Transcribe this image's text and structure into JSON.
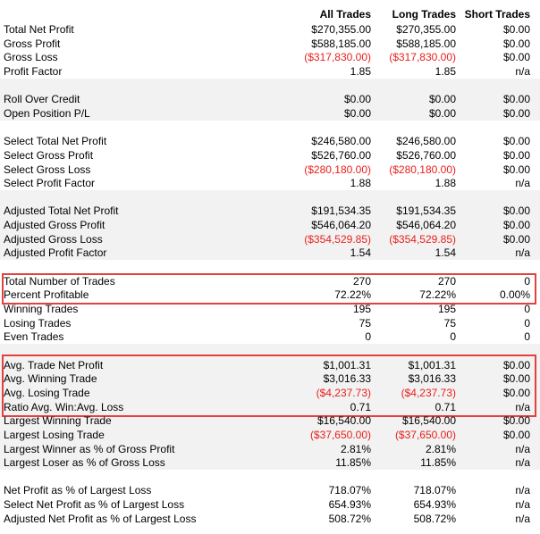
{
  "header": {
    "columns": [
      "All Trades",
      "Long Trades",
      "Short Trades"
    ]
  },
  "sections": [
    {
      "rows": [
        {
          "label": "Total Net Profit",
          "values": [
            "$270,355.00",
            "$270,355.00",
            "$0.00"
          ]
        },
        {
          "label": "Gross Profit",
          "values": [
            "$588,185.00",
            "$588,185.00",
            "$0.00"
          ]
        },
        {
          "label": "Gross Loss",
          "values": [
            "($317,830.00)",
            "($317,830.00)",
            "$0.00"
          ]
        },
        {
          "label": "Profit Factor",
          "values": [
            "1.85",
            "1.85",
            "n/a"
          ]
        }
      ]
    },
    {
      "rows": [
        {
          "label": "Roll Over Credit",
          "values": [
            "$0.00",
            "$0.00",
            "$0.00"
          ]
        },
        {
          "label": "Open Position P/L",
          "values": [
            "$0.00",
            "$0.00",
            "$0.00"
          ]
        }
      ]
    },
    {
      "rows": [
        {
          "label": "Select Total Net Profit",
          "values": [
            "$246,580.00",
            "$246,580.00",
            "$0.00"
          ]
        },
        {
          "label": "Select Gross Profit",
          "values": [
            "$526,760.00",
            "$526,760.00",
            "$0.00"
          ]
        },
        {
          "label": "Select Gross Loss",
          "values": [
            "($280,180.00)",
            "($280,180.00)",
            "$0.00"
          ]
        },
        {
          "label": "Select Profit Factor",
          "values": [
            "1.88",
            "1.88",
            "n/a"
          ]
        }
      ]
    },
    {
      "rows": [
        {
          "label": "Adjusted Total Net Profit",
          "values": [
            "$191,534.35",
            "$191,534.35",
            "$0.00"
          ]
        },
        {
          "label": "Adjusted Gross Profit",
          "values": [
            "$546,064.20",
            "$546,064.20",
            "$0.00"
          ]
        },
        {
          "label": "Adjusted Gross Loss",
          "values": [
            "($354,529.85)",
            "($354,529.85)",
            "$0.00"
          ]
        },
        {
          "label": "Adjusted Profit Factor",
          "values": [
            "1.54",
            "1.54",
            "n/a"
          ]
        }
      ]
    },
    {
      "rows": [
        {
          "label": "Total Number of Trades",
          "values": [
            "270",
            "270",
            "0"
          ]
        },
        {
          "label": "Percent Profitable",
          "values": [
            "72.22%",
            "72.22%",
            "0.00%"
          ]
        },
        {
          "label": "Winning Trades",
          "values": [
            "195",
            "195",
            "0"
          ]
        },
        {
          "label": "Losing Trades",
          "values": [
            "75",
            "75",
            "0"
          ]
        },
        {
          "label": "Even Trades",
          "values": [
            "0",
            "0",
            "0"
          ]
        }
      ]
    },
    {
      "rows": [
        {
          "label": "Avg. Trade Net Profit",
          "values": [
            "$1,001.31",
            "$1,001.31",
            "$0.00"
          ]
        },
        {
          "label": "Avg. Winning Trade",
          "values": [
            "$3,016.33",
            "$3,016.33",
            "$0.00"
          ]
        },
        {
          "label": "Avg. Losing Trade",
          "values": [
            "($4,237.73)",
            "($4,237.73)",
            "$0.00"
          ]
        },
        {
          "label": "Ratio Avg. Win:Avg. Loss",
          "values": [
            "0.71",
            "0.71",
            "n/a"
          ]
        },
        {
          "label": "Largest Winning Trade",
          "values": [
            "$16,540.00",
            "$16,540.00",
            "$0.00"
          ]
        },
        {
          "label": "Largest Losing Trade",
          "values": [
            "($37,650.00)",
            "($37,650.00)",
            "$0.00"
          ]
        },
        {
          "label": "Largest Winner as % of Gross Profit",
          "values": [
            "2.81%",
            "2.81%",
            "n/a"
          ]
        },
        {
          "label": "Largest Loser as % of Gross Loss",
          "values": [
            "11.85%",
            "11.85%",
            "n/a"
          ]
        }
      ]
    },
    {
      "rows": [
        {
          "label": "Net Profit as % of Largest Loss",
          "values": [
            "718.07%",
            "718.07%",
            "n/a"
          ]
        },
        {
          "label": "Select Net Profit as % of Largest Loss",
          "values": [
            "654.93%",
            "654.93%",
            "n/a"
          ]
        },
        {
          "label": "Adjusted Net Profit as % of Largest Loss",
          "values": [
            "508.72%",
            "508.72%",
            "n/a"
          ]
        }
      ]
    }
  ]
}
